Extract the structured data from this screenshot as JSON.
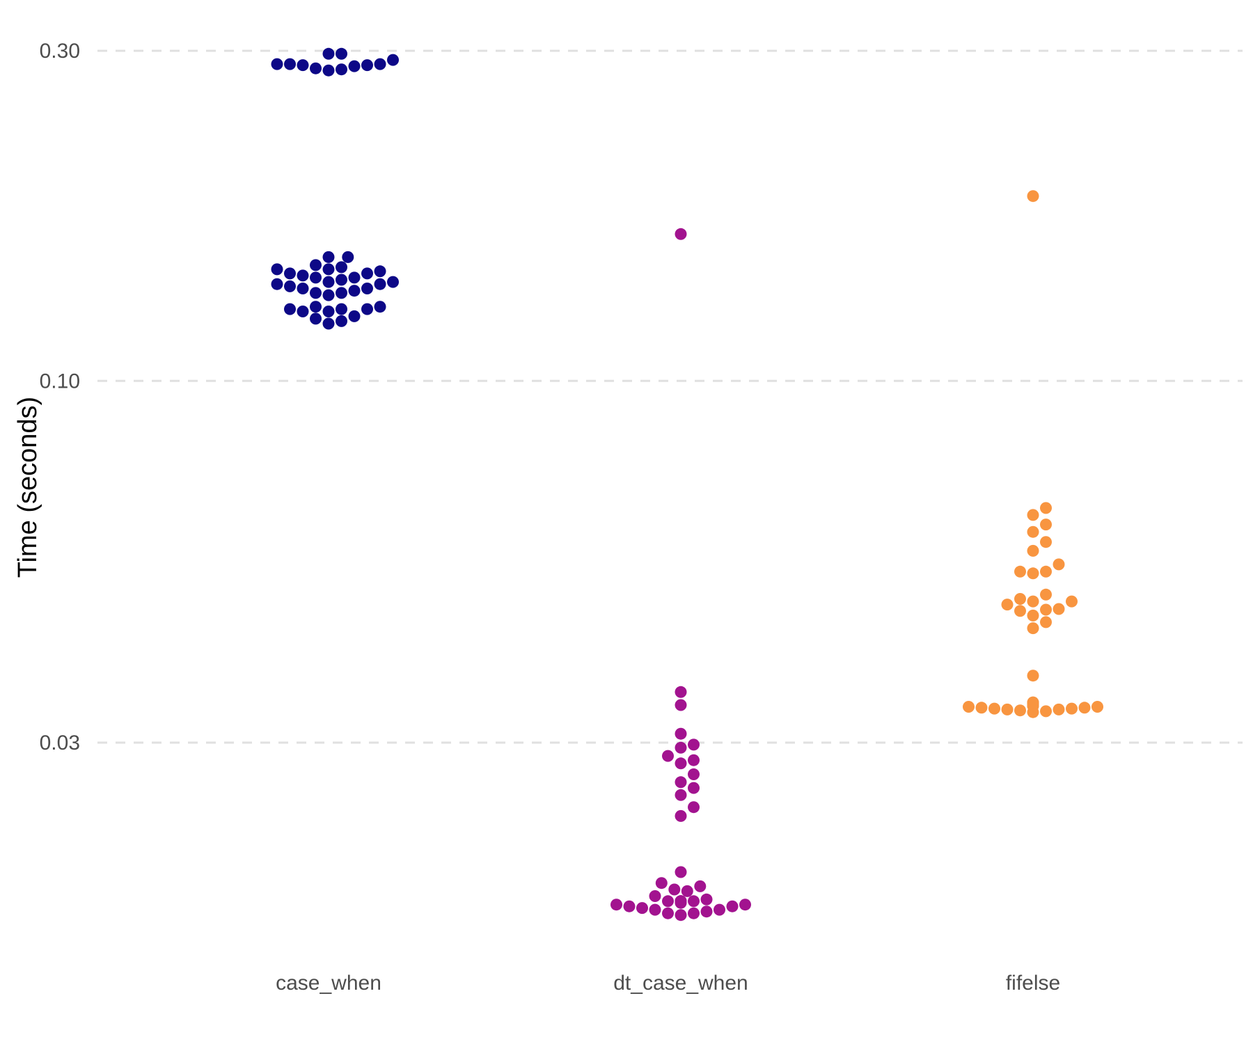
{
  "chart_data": {
    "type": "scatter",
    "subtype": "beeswarm",
    "title": "",
    "xlabel": "",
    "ylabel": "Time (seconds)",
    "y_scale": "log10",
    "ylim": [
      0.011,
      0.33
    ],
    "y_ticks": [
      {
        "value": 0.03,
        "label": "0.03"
      },
      {
        "value": 0.1,
        "label": "0.10"
      },
      {
        "value": 0.3,
        "label": "0.30"
      }
    ],
    "grid": {
      "major_y": true,
      "style": "dashed"
    },
    "legend": "none",
    "categories": [
      "case_when",
      "dt_case_when",
      "fifelse"
    ],
    "series": [
      {
        "category": "case_when",
        "color": "#0d0887",
        "values": [
          0.297,
          0.297,
          0.291,
          0.287,
          0.287,
          0.287,
          0.286,
          0.286,
          0.285,
          0.283,
          0.282,
          0.281,
          0.151,
          0.151,
          0.147,
          0.146,
          0.145,
          0.145,
          0.144,
          0.143,
          0.143,
          0.142,
          0.141,
          0.141,
          0.14,
          0.139,
          0.139,
          0.138,
          0.138,
          0.137,
          0.136,
          0.136,
          0.135,
          0.134,
          0.134,
          0.133,
          0.128,
          0.128,
          0.127,
          0.127,
          0.127,
          0.126,
          0.126,
          0.124,
          0.123,
          0.122,
          0.121
        ]
      },
      {
        "category": "dt_case_when",
        "color": "#a2138f",
        "values": [
          0.163,
          0.0355,
          0.034,
          0.0309,
          0.0298,
          0.0295,
          0.0287,
          0.0283,
          0.028,
          0.027,
          0.0263,
          0.0258,
          0.0252,
          0.0242,
          0.0235,
          0.0195,
          0.0188,
          0.0186,
          0.0184,
          0.0183,
          0.018,
          0.0178,
          0.0177,
          0.0177,
          0.0177,
          0.0177,
          0.0177,
          0.0177,
          0.0177,
          0.0176,
          0.0175,
          0.0175,
          0.0174,
          0.0174,
          0.0173,
          0.0172,
          0.0172,
          0.0171,
          0.017,
          0.017,
          0.0169
        ]
      },
      {
        "category": "fifelse",
        "color": "#f89540",
        "values": [
          0.185,
          0.0655,
          0.064,
          0.062,
          0.0605,
          0.0585,
          0.0568,
          0.0543,
          0.053,
          0.053,
          0.0527,
          0.0491,
          0.0484,
          0.048,
          0.048,
          0.0475,
          0.0468,
          0.0467,
          0.0465,
          0.0458,
          0.0448,
          0.0439,
          0.0375,
          0.0343,
          0.0343,
          0.0342,
          0.0341,
          0.0341,
          0.034,
          0.0339,
          0.0339,
          0.0338,
          0.0338,
          0.0337,
          0.0337,
          0.0336,
          0.0336,
          0.0335,
          0.0335,
          0.0334,
          0.0333,
          0.0332
        ]
      }
    ]
  }
}
